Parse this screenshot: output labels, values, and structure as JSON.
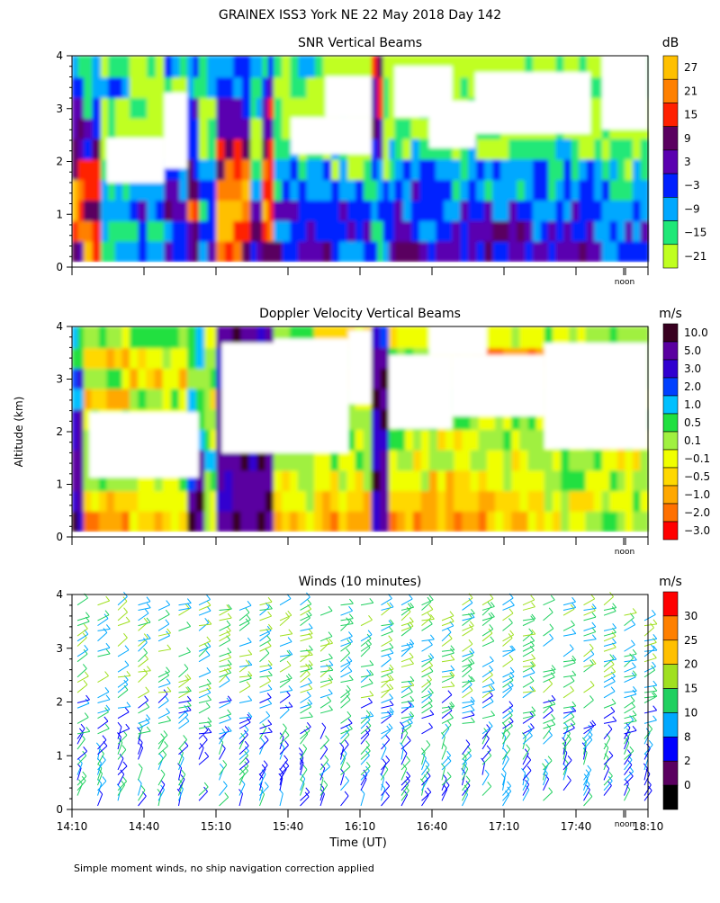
{
  "title": "GRAINEX ISS3 York NE  22 May 2018 Day 142",
  "ylabel": "Altitude (km)",
  "xlabel": "Time (UT)",
  "footnote": "Simple moment winds, no ship navigation correction applied",
  "noon_label": "noon",
  "x_ticks": [
    "14:10",
    "14:40",
    "15:10",
    "15:40",
    "16:10",
    "16:40",
    "17:10",
    "17:40",
    "18:10"
  ],
  "y_ticks": [
    "0",
    "1",
    "2",
    "3",
    "4"
  ],
  "chart_data": [
    {
      "type": "heatmap",
      "title": "SNR Vertical Beams",
      "unit": "dB",
      "x": [
        "14:10",
        "18:10"
      ],
      "ylim": [
        0,
        4
      ],
      "colorbar": {
        "labels": [
          "27",
          "21",
          "15",
          "9",
          "3",
          "−3",
          "−9",
          "−15",
          "−21"
        ],
        "colors": [
          "#ffc000",
          "#ff8000",
          "#ff2000",
          "#5a0060",
          "#5a00b0",
          "#0020ff",
          "#00a8ff",
          "#20e878",
          "#c0ff20"
        ]
      }
    },
    {
      "type": "heatmap",
      "title": "Doppler Velocity Vertical Beams",
      "unit": "m/s",
      "x": [
        "14:10",
        "18:10"
      ],
      "ylim": [
        0,
        4
      ],
      "colorbar": {
        "labels": [
          "10.0",
          "5.0",
          "3.0",
          "2.0",
          "1.0",
          "0.5",
          "0.1",
          "−0.1",
          "−0.5",
          "−1.0",
          "−2.0",
          "−3.0"
        ],
        "colors": [
          "#380020",
          "#5a00a0",
          "#3000d0",
          "#0040ff",
          "#00c0ff",
          "#20e040",
          "#a0f040",
          "#f0ff00",
          "#ffd800",
          "#ffa800",
          "#ff7000",
          "#ff0000"
        ]
      }
    },
    {
      "type": "barbs",
      "title": "Winds (10 minutes)",
      "unit": "m/s",
      "x": [
        "14:10",
        "18:10"
      ],
      "ylim": [
        0,
        4
      ],
      "colorbar": {
        "labels": [
          "30",
          "25",
          "20",
          "15",
          "10",
          "8",
          "2",
          "0"
        ],
        "colors": [
          "#ff0000",
          "#ff8000",
          "#ffc000",
          "#a0e020",
          "#20d060",
          "#00a8ff",
          "#0000ff",
          "#5a0060",
          "#000000"
        ]
      }
    }
  ]
}
